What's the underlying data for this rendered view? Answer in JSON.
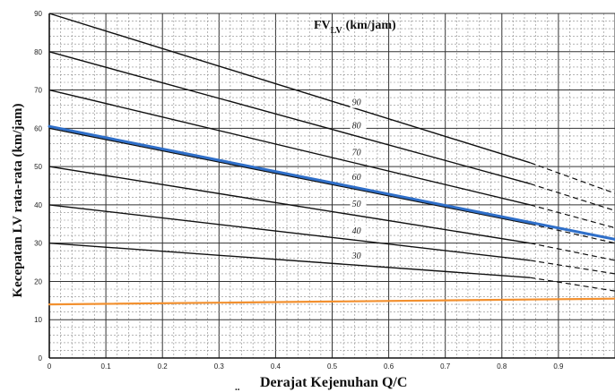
{
  "chart_data": {
    "type": "line",
    "ylabel": "Kecepatan LV rata-rata (km/jam)",
    "xlabel": "Derajat Kejenuhan  Q/C",
    "xlabel_prefix": "..",
    "legend_title": {
      "main": "FV",
      "sub": "LV",
      "unit": "(km/jam)"
    },
    "xlim": [
      0,
      1.0
    ],
    "ylim": [
      0,
      90
    ],
    "x_ticks": [
      "0",
      "0.1",
      "0.2",
      "0.3",
      "0.4",
      "0.5",
      "0.6",
      "0.7",
      "0.8",
      "0.9"
    ],
    "y_ticks": [
      "0",
      "10",
      "20",
      "30",
      "40",
      "50",
      "60",
      "70",
      "80",
      "90"
    ],
    "grid": true,
    "series": [
      {
        "name": "90",
        "solid": [
          [
            0,
            90
          ],
          [
            0.85,
            51
          ]
        ],
        "dashed": [
          [
            0.85,
            51
          ],
          [
            1.0,
            43
          ]
        ]
      },
      {
        "name": "80",
        "solid": [
          [
            0,
            80
          ],
          [
            0.85,
            45.5
          ]
        ],
        "dashed": [
          [
            0.85,
            45.5
          ],
          [
            1.0,
            38.5
          ]
        ]
      },
      {
        "name": "70",
        "solid": [
          [
            0,
            70
          ],
          [
            0.85,
            40
          ]
        ],
        "dashed": [
          [
            0.85,
            40
          ],
          [
            1.0,
            34
          ]
        ]
      },
      {
        "name": "60",
        "solid": [
          [
            0,
            60
          ],
          [
            0.85,
            35
          ]
        ],
        "dashed": [
          [
            0.85,
            35
          ],
          [
            1.0,
            30
          ]
        ]
      },
      {
        "name": "50",
        "solid": [
          [
            0,
            50
          ],
          [
            0.85,
            30
          ]
        ],
        "dashed": [
          [
            0.85,
            30
          ],
          [
            1.0,
            25.5
          ]
        ]
      },
      {
        "name": "40",
        "solid": [
          [
            0,
            40
          ],
          [
            0.85,
            25.5
          ]
        ],
        "dashed": [
          [
            0.85,
            25.5
          ],
          [
            1.0,
            22
          ]
        ]
      },
      {
        "name": "30",
        "solid": [
          [
            0,
            30
          ],
          [
            0.85,
            21
          ]
        ],
        "dashed": [
          [
            0.85,
            21
          ],
          [
            1.0,
            17.5
          ]
        ]
      }
    ],
    "series_label_x": 0.535,
    "series_label_y": [
      66,
      60,
      53,
      46.5,
      39.5,
      32.5,
      26
    ],
    "overlays": [
      {
        "color": "#2f6fc9",
        "points": [
          [
            0,
            60.5
          ],
          [
            1.0,
            31
          ]
        ]
      },
      {
        "color": "#f2902f",
        "points": [
          [
            0,
            14
          ],
          [
            1.0,
            15.5
          ]
        ]
      }
    ]
  }
}
